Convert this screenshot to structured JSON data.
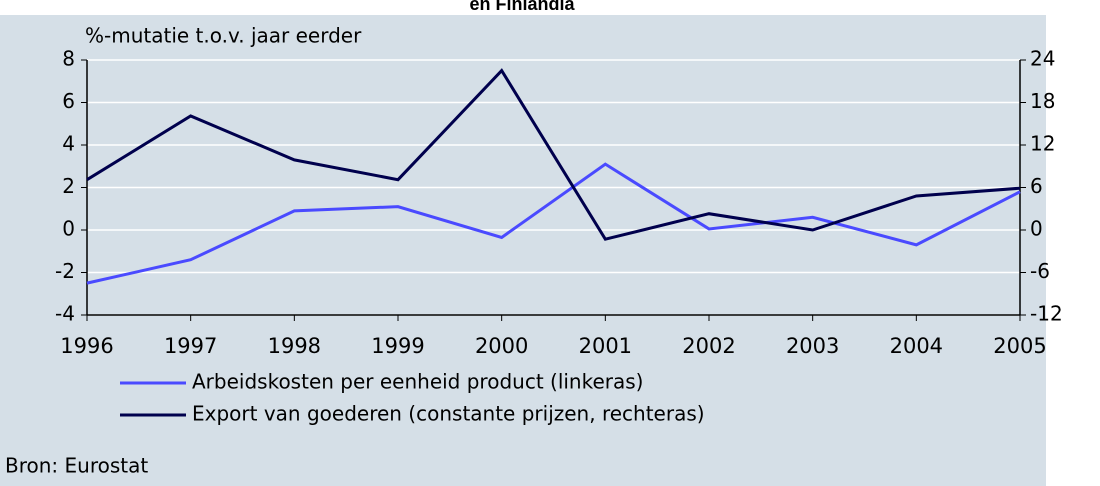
{
  "chart_data": {
    "type": "line",
    "title": "en Finlandia",
    "ylabel": "%-mutatie t.o.v. jaar eerder",
    "source": "Bron: Eurostat",
    "categories": [
      "1996",
      "1997",
      "1998",
      "1999",
      "2000",
      "2001",
      "2002",
      "2003",
      "2004",
      "2005"
    ],
    "ylim": [
      -4,
      8
    ],
    "yticks": [
      -4,
      -2,
      0,
      2,
      4,
      6,
      8
    ],
    "y2lim": [
      -12,
      24
    ],
    "y2ticks": [
      -12,
      -6,
      0,
      6,
      12,
      18,
      24
    ],
    "grid": true,
    "series": [
      {
        "name": "Arbeidskosten per eenheid product (linkeras)",
        "color": "#4a4aff",
        "values": [
          -2.5,
          -1.4,
          0.9,
          1.1,
          -0.35,
          3.1,
          0.05,
          0.6,
          -0.7,
          1.8
        ]
      },
      {
        "name": "Export van goederen (constante prijzen, rechteras)",
        "color": "#00004d",
        "axis": "y2",
        "values": [
          7.1,
          16.1,
          9.9,
          7.1,
          22.5,
          -1.3,
          2.3,
          0,
          4.8,
          5.9
        ]
      }
    ]
  }
}
